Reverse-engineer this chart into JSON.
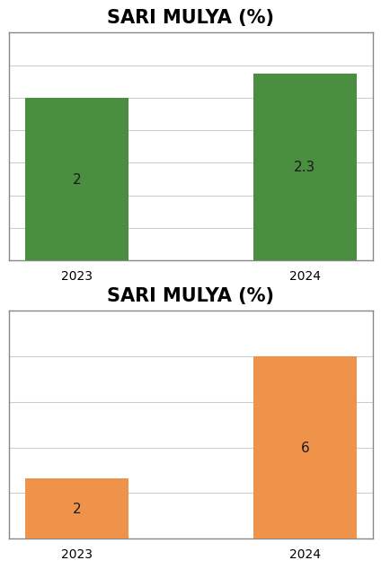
{
  "charts": [
    {
      "title": "SARI MULYA (%)",
      "categories": [
        "2023",
        "2024"
      ],
      "values": [
        2,
        2.3
      ],
      "bar_color": "#4a8f3f",
      "bar_label_color": "#1a1a1a",
      "ylim": [
        0,
        2.8
      ],
      "yticks": [
        0,
        0.4,
        0.8,
        1.2,
        1.6,
        2.0,
        2.4,
        2.8
      ],
      "bar_labels": [
        "2",
        "2.3"
      ]
    },
    {
      "title": "SARI MULYA (%)",
      "categories": [
        "2023",
        "2024"
      ],
      "values": [
        2,
        6
      ],
      "bar_color": "#f0934a",
      "bar_label_color": "#1a1a1a",
      "ylim": [
        0,
        7.5
      ],
      "yticks": [
        0,
        1.5,
        3.0,
        4.5,
        6.0,
        7.5
      ],
      "bar_labels": [
        "2",
        "6"
      ]
    }
  ],
  "background_color": "#ffffff",
  "border_color": "#888888",
  "grid_color": "#cccccc",
  "title_fontsize": 15,
  "tick_fontsize": 10,
  "bar_label_fontsize": 11
}
